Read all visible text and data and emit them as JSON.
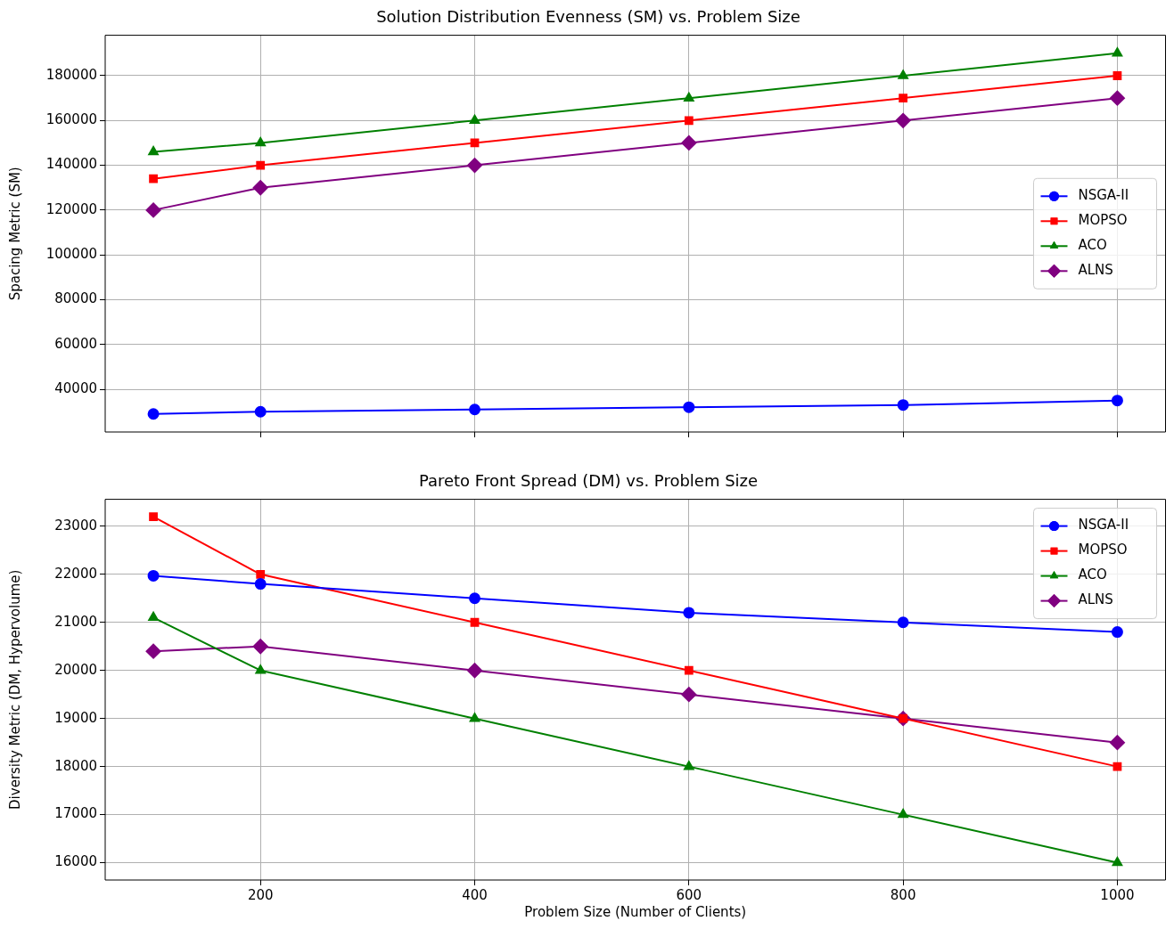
{
  "chart_data": [
    {
      "type": "line",
      "title": "Solution Distribution Evenness (SM) vs. Problem Size",
      "ylabel": "Spacing Metric (SM)",
      "x": [
        100,
        200,
        400,
        600,
        800,
        1000
      ],
      "xlim": [
        55,
        1045
      ],
      "xticks": [
        200,
        400,
        600,
        800,
        1000
      ],
      "ylim": [
        20950,
        198050
      ],
      "yticks": [
        40000,
        60000,
        80000,
        100000,
        120000,
        140000,
        160000,
        180000
      ],
      "grid": true,
      "legend": "center right",
      "tick_labels": "y",
      "series": [
        {
          "name": "NSGA-II",
          "color": "#0000ff",
          "marker": "circle",
          "values": [
            29000,
            30000,
            31000,
            32000,
            33000,
            35000
          ]
        },
        {
          "name": "MOPSO",
          "color": "#ff0000",
          "marker": "square",
          "values": [
            134000,
            140000,
            150000,
            160000,
            170000,
            180000
          ]
        },
        {
          "name": "ACO",
          "color": "#008000",
          "marker": "triangle",
          "values": [
            146000,
            150000,
            160000,
            170000,
            180000,
            190000
          ]
        },
        {
          "name": "ALNS",
          "color": "#800080",
          "marker": "diamond",
          "values": [
            120000,
            130000,
            140000,
            150000,
            160000,
            170000
          ]
        }
      ]
    },
    {
      "type": "line",
      "title": "Pareto Front Spread (DM) vs. Problem Size",
      "xlabel": "Problem Size (Number of Clients)",
      "ylabel": "Diversity Metric (DM, Hypervolume)",
      "x": [
        100,
        200,
        400,
        600,
        800,
        1000
      ],
      "xlim": [
        55,
        1045
      ],
      "xticks": [
        200,
        400,
        600,
        800,
        1000
      ],
      "ylim": [
        15640,
        23560
      ],
      "yticks": [
        16000,
        17000,
        18000,
        19000,
        20000,
        21000,
        22000,
        23000
      ],
      "grid": true,
      "legend": "top right",
      "series": [
        {
          "name": "NSGA-II",
          "color": "#0000ff",
          "marker": "circle",
          "values": [
            21970,
            21800,
            21500,
            21200,
            21000,
            20800
          ]
        },
        {
          "name": "MOPSO",
          "color": "#ff0000",
          "marker": "square",
          "values": [
            23200,
            22000,
            21000,
            20000,
            19000,
            18000
          ]
        },
        {
          "name": "ACO",
          "color": "#008000",
          "marker": "triangle",
          "values": [
            21100,
            20000,
            19000,
            18000,
            17000,
            16000
          ]
        },
        {
          "name": "ALNS",
          "color": "#800080",
          "marker": "diamond",
          "values": [
            20400,
            20500,
            20000,
            19500,
            19000,
            18500
          ]
        }
      ]
    }
  ]
}
